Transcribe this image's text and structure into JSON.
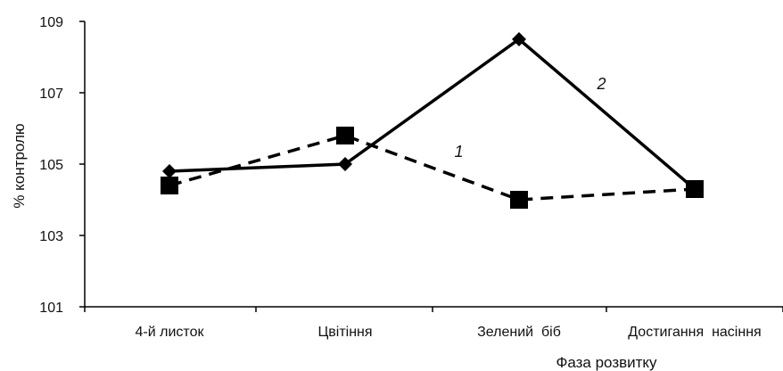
{
  "chart_data": {
    "type": "line",
    "xlabel": "Фаза розвитку",
    "ylabel": "% контролю",
    "categories": [
      "4-й листок",
      "Цвітіння",
      "Зелений  біб",
      "Достигання  насіння"
    ],
    "yticks": [
      "109",
      "107",
      "105",
      "103",
      "101"
    ],
    "ylim": [
      101,
      109
    ],
    "grid": false,
    "series": [
      {
        "name": "1",
        "line_style": "dashed",
        "marker": "square",
        "values": [
          104.4,
          105.8,
          104.0,
          104.3
        ]
      },
      {
        "name": "2",
        "line_style": "solid",
        "marker": "diamond",
        "values": [
          104.8,
          105.0,
          108.5,
          104.3
        ]
      }
    ],
    "series_color": "#000000"
  }
}
